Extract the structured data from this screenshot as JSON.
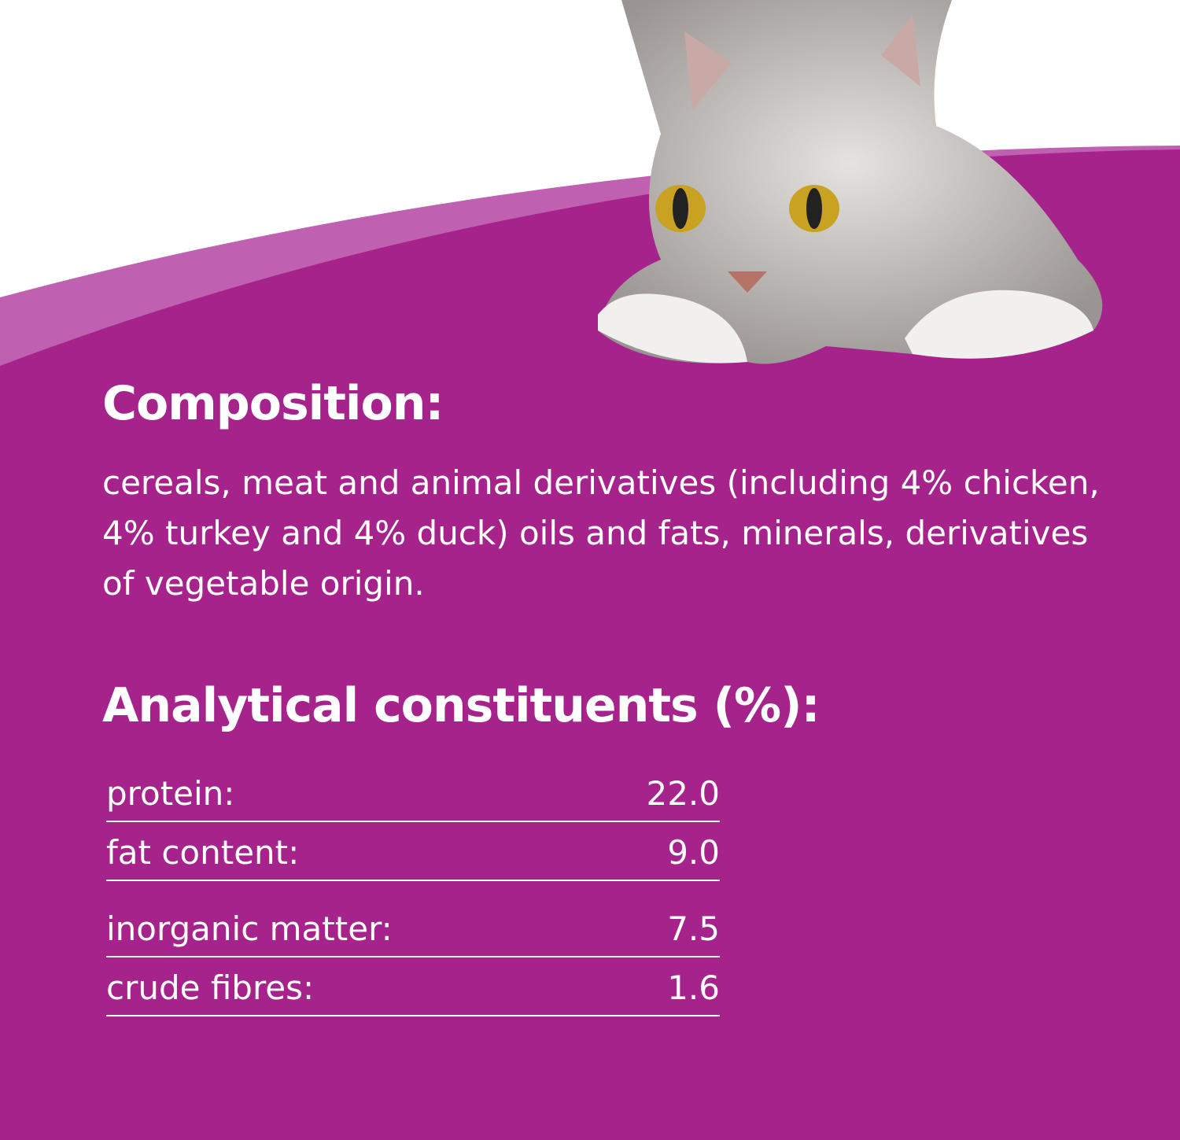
{
  "colors": {
    "primary": "#a6238c",
    "band": "#c060b0",
    "text": "#ffffff"
  },
  "image": {
    "subject": "cat-icon"
  },
  "composition": {
    "title": "Composition:",
    "text": "cereals, meat and animal derivatives (including 4% chicken, 4% turkey and 4% duck) oils and fats, minerals, derivatives of vegetable origin."
  },
  "analytical": {
    "title": "Analytical constituents (%):",
    "rows": [
      {
        "label": "protein:",
        "value": "22.0"
      },
      {
        "label": "fat content:",
        "value": "9.0"
      },
      {
        "label": "inorganic matter:",
        "value": "7.5"
      },
      {
        "label": "crude fibres:",
        "value": "1.6"
      }
    ]
  }
}
